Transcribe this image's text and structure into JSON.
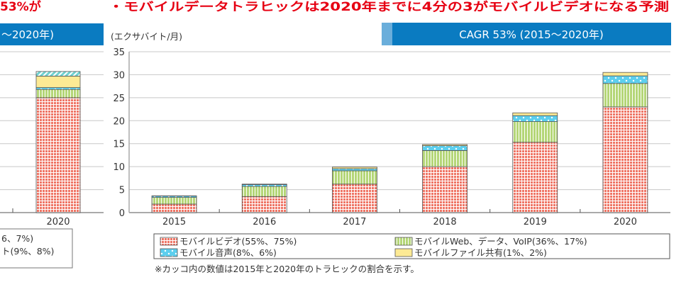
{
  "page": {
    "left_title_fragment": "53%が",
    "title": "・モバイルデータトラヒックは2020年までに4分の3がモバイルビデオになる予測",
    "left_header_fragment": "〜2020年)",
    "header": "CAGR 53% (2015〜2020年)",
    "left_legend_fragments": [
      "6、7%)",
      "ト(9%、8%)"
    ],
    "note": "※カッコ内の数値は2015年と2020年のトラヒックの割合を示す。"
  },
  "colors": {
    "title_red": "#e60012",
    "header_blue": "#0a7bc1",
    "header_light_blue": "#6aaedb",
    "video": "#ef7565",
    "web": "#b4d677",
    "voice": "#5ccfee",
    "file": "#fdea94",
    "left_extra": "#6fd2d0"
  },
  "chart_data": [
    {
      "type": "bar",
      "stacked": true,
      "partial": "cropped at left edge",
      "categories": [
        "2020"
      ],
      "series": [
        {
          "values": [
            25.0
          ],
          "pattern": "video"
        },
        {
          "values": [
            1.8
          ],
          "pattern": "web"
        },
        {
          "values": [
            0.4
          ],
          "pattern": "voice"
        },
        {
          "values": [
            2.5
          ],
          "pattern": "file"
        },
        {
          "values": [
            1.0
          ],
          "pattern": "left_extra"
        }
      ],
      "ylim": [
        0,
        35
      ],
      "grid": true
    },
    {
      "type": "bar",
      "stacked": true,
      "ylabel": "(エクサバイト/月)",
      "ylim": [
        0,
        35
      ],
      "yticks": [
        "0",
        "5",
        "10",
        "15",
        "20",
        "25",
        "30",
        "35"
      ],
      "grid": true,
      "legend_position": "bottom",
      "categories": [
        "2015",
        "2016",
        "2017",
        "2018",
        "2019",
        "2020"
      ],
      "series": [
        {
          "name": "モバイルビデオ(55%、75%)",
          "pattern": "video",
          "values": [
            1.85,
            3.5,
            6.2,
            10.0,
            15.3,
            23.0
          ]
        },
        {
          "name": "モバイルWeb、データ、VoIP(36%、17%)",
          "pattern": "web",
          "values": [
            1.45,
            2.2,
            2.9,
            3.5,
            4.5,
            5.1
          ]
        },
        {
          "name": "モバイル音声(8%、6%)",
          "pattern": "voice",
          "values": [
            0.3,
            0.4,
            0.45,
            1.05,
            1.3,
            1.65
          ]
        },
        {
          "name": "モバイルファイル共有(1%、2%)",
          "pattern": "file",
          "values": [
            0.05,
            0.1,
            0.35,
            0.25,
            0.6,
            0.75
          ]
        }
      ]
    }
  ]
}
